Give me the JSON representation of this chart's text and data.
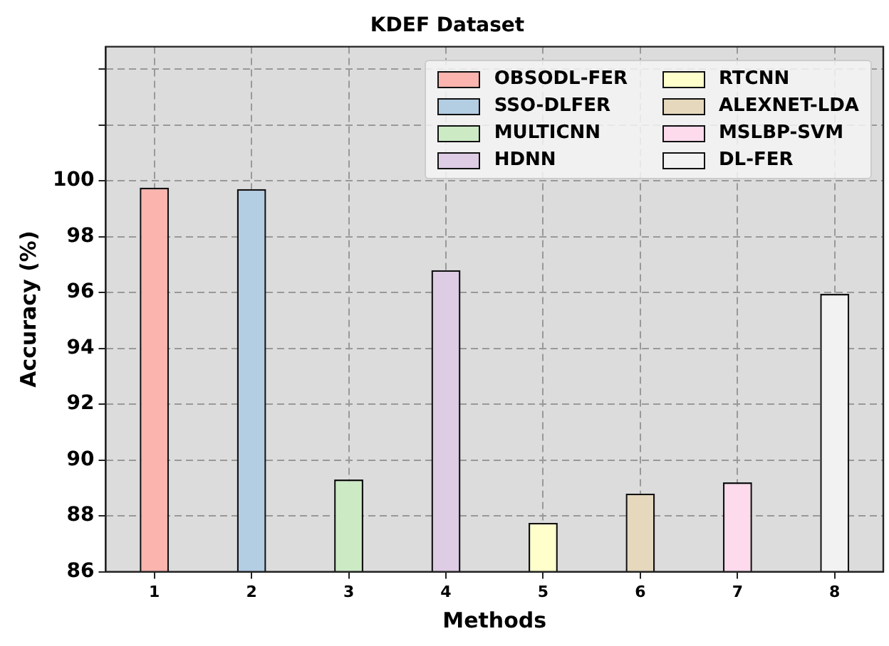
{
  "chart_data": {
    "type": "bar",
    "title": "KDEF Dataset",
    "xlabel": "Methods",
    "ylabel": "Accuracy (%)",
    "categories": [
      "1",
      "2",
      "3",
      "4",
      "5",
      "6",
      "7",
      "8"
    ],
    "series": [
      {
        "name": "OBSODL-FER",
        "color": "#fbb4ae",
        "values": [
          99.75,
          null,
          null,
          null,
          null,
          null,
          null,
          null
        ]
      },
      {
        "name": "SSO-DLFER",
        "color": "#b3cde3",
        "values": [
          null,
          99.7,
          null,
          null,
          null,
          null,
          null,
          null
        ]
      },
      {
        "name": "MULTICNN",
        "color": "#ccebc5",
        "values": [
          null,
          null,
          89.3,
          null,
          null,
          null,
          null,
          null
        ]
      },
      {
        "name": "HDNN",
        "color": "#decbe4",
        "values": [
          null,
          null,
          null,
          96.8,
          null,
          null,
          null,
          null
        ]
      },
      {
        "name": "RTCNN",
        "color": "#ffffcc",
        "values": [
          null,
          null,
          null,
          null,
          87.75,
          null,
          null,
          null
        ]
      },
      {
        "name": "ALEXNET-LDA",
        "color": "#e5d8bd",
        "values": [
          null,
          null,
          null,
          null,
          null,
          88.8,
          null,
          null
        ]
      },
      {
        "name": "MSLBP-SVM",
        "color": "#fddaec",
        "values": [
          null,
          null,
          null,
          null,
          null,
          null,
          89.2,
          null
        ]
      },
      {
        "name": "DL-FER",
        "color": "#f2f2f2",
        "values": [
          null,
          null,
          null,
          null,
          null,
          null,
          null,
          95.95
        ]
      }
    ],
    "ylim": [
      86,
      104.8
    ],
    "yticks": [
      86,
      88,
      90,
      92,
      94,
      96,
      98,
      100,
      {
        "value": 102,
        "label": null
      },
      {
        "value": 104,
        "label": null
      }
    ],
    "grid": true,
    "legend": "top right"
  }
}
